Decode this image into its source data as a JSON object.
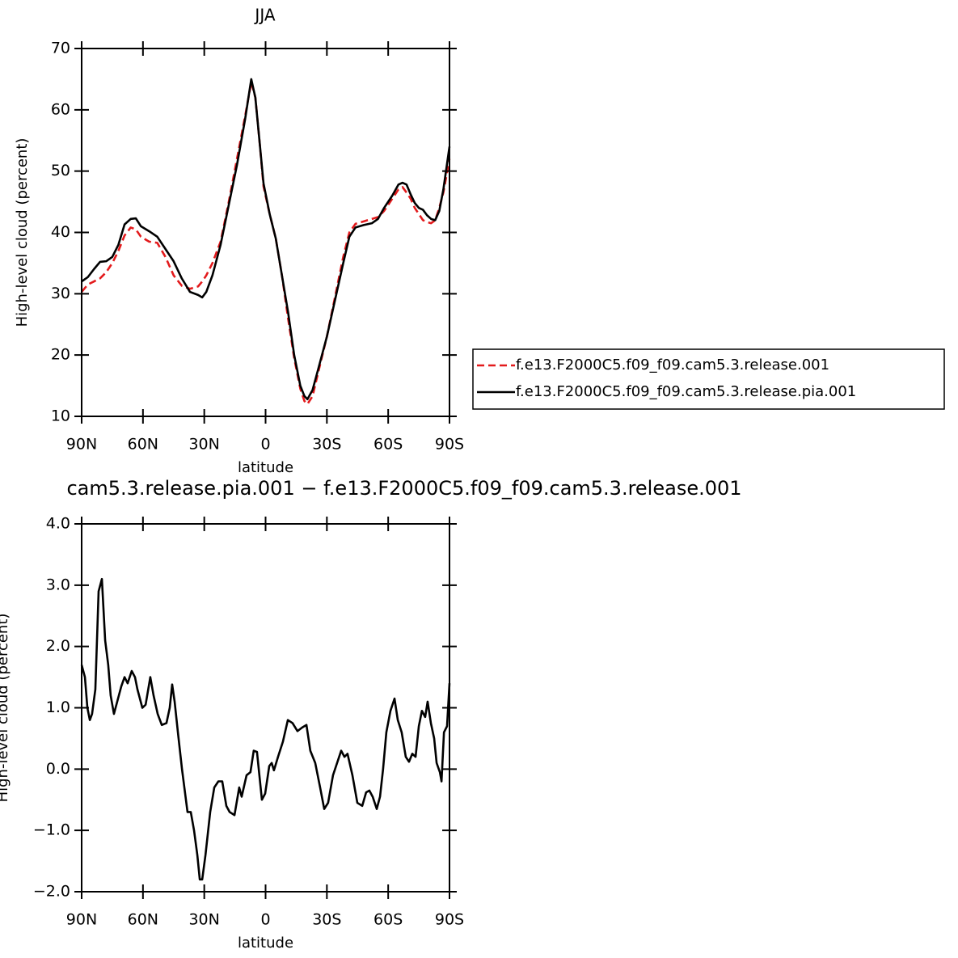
{
  "chart_data": [
    {
      "type": "line",
      "title": "JJA",
      "xlabel": "latitude",
      "ylabel": "High-level cloud (percent)",
      "x": [
        90,
        87,
        84,
        81,
        78,
        75,
        72,
        69,
        66,
        63.5,
        61,
        57,
        53,
        49,
        45,
        41,
        37,
        33,
        31,
        29,
        26,
        22,
        18,
        14,
        10,
        7,
        5,
        3,
        1,
        -2,
        -5,
        -8,
        -11,
        -14,
        -17,
        -19,
        -20.5,
        -23,
        -26,
        -30,
        -34,
        -38,
        -41,
        -44,
        -48,
        -52,
        -55,
        -58,
        -62,
        -65,
        -67,
        -69,
        -71,
        -73,
        -75,
        -77,
        -79,
        -81,
        -83,
        -85,
        -87,
        -90
      ],
      "series": [
        {
          "name": "f.e13.F2000C5.f09_f09.cam5.3.release.001",
          "color": "#e31a1c",
          "dashed": true,
          "values": [
            30.3,
            31.5,
            32,
            32.5,
            33.5,
            35,
            37,
            39.5,
            40.8,
            40.5,
            39.3,
            38.5,
            38.3,
            36,
            33,
            31.3,
            30.8,
            31.2,
            32,
            33,
            35,
            38.5,
            45,
            52,
            59,
            64.5,
            62,
            55,
            47.5,
            43,
            39,
            33,
            26,
            19.5,
            14.5,
            12.5,
            12,
            13.3,
            17.5,
            23,
            29.5,
            36,
            40,
            41.4,
            41.8,
            42.2,
            42.5,
            43.5,
            45.5,
            47,
            47.4,
            46.5,
            45.5,
            44,
            43,
            42,
            41.7,
            41.5,
            42,
            44,
            46.5,
            52
          ]
        },
        {
          "name": "f.e13.F2000C5.f09_f09.cam5.3.release.pia.001",
          "color": "#000000",
          "dashed": false,
          "values": [
            32,
            32.7,
            34,
            35.2,
            35.3,
            36,
            38,
            41.3,
            42.2,
            42.3,
            41,
            40.2,
            39.3,
            37.3,
            35.3,
            32.5,
            30.3,
            29.8,
            29.4,
            30.3,
            33,
            38,
            44.5,
            51,
            58.5,
            65,
            62,
            55,
            48,
            43,
            39,
            33,
            27,
            20,
            15,
            13.3,
            12.8,
            14.3,
            18,
            23,
            29,
            35,
            39.3,
            40.8,
            41.2,
            41.5,
            42.2,
            44,
            46,
            47.8,
            48.1,
            47.8,
            46.2,
            44.8,
            44,
            43.7,
            42.8,
            42.2,
            42,
            43.5,
            47,
            54
          ]
        }
      ],
      "xlim": [
        90,
        -90
      ],
      "xticks": [
        {
          "value": 90,
          "label": "90N"
        },
        {
          "value": 60,
          "label": "60N"
        },
        {
          "value": 30,
          "label": "30N"
        },
        0,
        {
          "value": -30,
          "label": "30S"
        },
        {
          "value": -60,
          "label": "60S"
        },
        {
          "value": -90,
          "label": "90S"
        }
      ],
      "ylim": [
        10,
        70
      ],
      "yticks": [
        10,
        20,
        30,
        40,
        50,
        60,
        70
      ],
      "legend": "right"
    },
    {
      "type": "line",
      "title": "cam5.3.release.pia.001 − f.e13.F2000C5.f09_f09.cam5.3.release.001",
      "xlabel": "latitude",
      "ylabel": "High-level cloud (percent)",
      "x": [
        90,
        88.4,
        87.2,
        86,
        84.9,
        83.3,
        81.7,
        80.1,
        78.5,
        77,
        75.8,
        74.2,
        72.6,
        70.6,
        69,
        67.5,
        65.5,
        63.9,
        62.7,
        60.3,
        58.7,
        56.4,
        54.8,
        52.8,
        50.8,
        48.5,
        46.9,
        45.7,
        44.5,
        42.9,
        40.9,
        38.2,
        36.6,
        35,
        33.4,
        32.2,
        31,
        29.4,
        27.1,
        25.1,
        23.1,
        21.2,
        19.2,
        17.6,
        15.2,
        12.9,
        11.7,
        9.3,
        7.4,
        5.8,
        4.2,
        1.8,
        0.2,
        -1.8,
        -3,
        -4.1,
        -6.1,
        -8.5,
        -10.9,
        -13.2,
        -15.6,
        -18,
        -20,
        -21.9,
        -24.3,
        -26.7,
        -28.7,
        -30.6,
        -33,
        -35,
        -37,
        -38.6,
        -40.1,
        -42.5,
        -44.9,
        -47.3,
        -49.2,
        -50.8,
        -52.4,
        -54.4,
        -56,
        -57.5,
        -59.1,
        -61.1,
        -63.1,
        -64.7,
        -66.6,
        -68.6,
        -70.2,
        -71.8,
        -73.4,
        -75,
        -76.5,
        -78.1,
        -79.3,
        -80.9,
        -82.5,
        -83.7,
        -85.3,
        -86.1,
        -87.3,
        -88.8,
        -90
      ],
      "values": [
        1.7,
        1.5,
        1.0,
        0.8,
        0.9,
        1.3,
        2.9,
        3.1,
        2.1,
        1.7,
        1.2,
        0.9,
        1.1,
        1.35,
        1.5,
        1.4,
        1.6,
        1.5,
        1.3,
        1.0,
        1.05,
        1.5,
        1.2,
        0.9,
        0.72,
        0.75,
        1.0,
        1.38,
        1.1,
        0.6,
        0.0,
        -0.7,
        -0.7,
        -1.0,
        -1.4,
        -1.8,
        -1.8,
        -1.4,
        -0.7,
        -0.3,
        -0.2,
        -0.2,
        -0.6,
        -0.7,
        -0.75,
        -0.3,
        -0.45,
        -0.1,
        -0.05,
        0.3,
        0.28,
        -0.5,
        -0.4,
        0.05,
        0.1,
        -0.02,
        0.2,
        0.45,
        0.8,
        0.75,
        0.62,
        0.68,
        0.72,
        0.3,
        0.1,
        -0.3,
        -0.65,
        -0.55,
        -0.1,
        0.1,
        0.3,
        0.2,
        0.25,
        -0.1,
        -0.55,
        -0.6,
        -0.38,
        -0.35,
        -0.45,
        -0.65,
        -0.45,
        0.0,
        0.6,
        0.95,
        1.15,
        0.8,
        0.6,
        0.2,
        0.12,
        0.25,
        0.2,
        0.7,
        0.95,
        0.85,
        1.1,
        0.75,
        0.5,
        0.1,
        -0.05,
        -0.2,
        0.6,
        0.7,
        1.4
      ],
      "color": "#000000",
      "xlim": [
        90,
        -90
      ],
      "xticks": [
        {
          "value": 90,
          "label": "90N"
        },
        {
          "value": 60,
          "label": "60N"
        },
        {
          "value": 30,
          "label": "30N"
        },
        0,
        {
          "value": -30,
          "label": "30S"
        },
        {
          "value": -60,
          "label": "60S"
        },
        {
          "value": -90,
          "label": "90S"
        }
      ],
      "ylim": [
        -2,
        4
      ],
      "yticks": [
        {
          "value": -2,
          "label": "−2.0"
        },
        {
          "value": -1,
          "label": "−1.0"
        },
        {
          "value": 0,
          "label": "0.0"
        },
        {
          "value": 1,
          "label": "1.0"
        },
        {
          "value": 2,
          "label": "2.0"
        },
        {
          "value": 3,
          "label": "3.0"
        },
        {
          "value": 4,
          "label": "4.0"
        }
      ]
    }
  ]
}
